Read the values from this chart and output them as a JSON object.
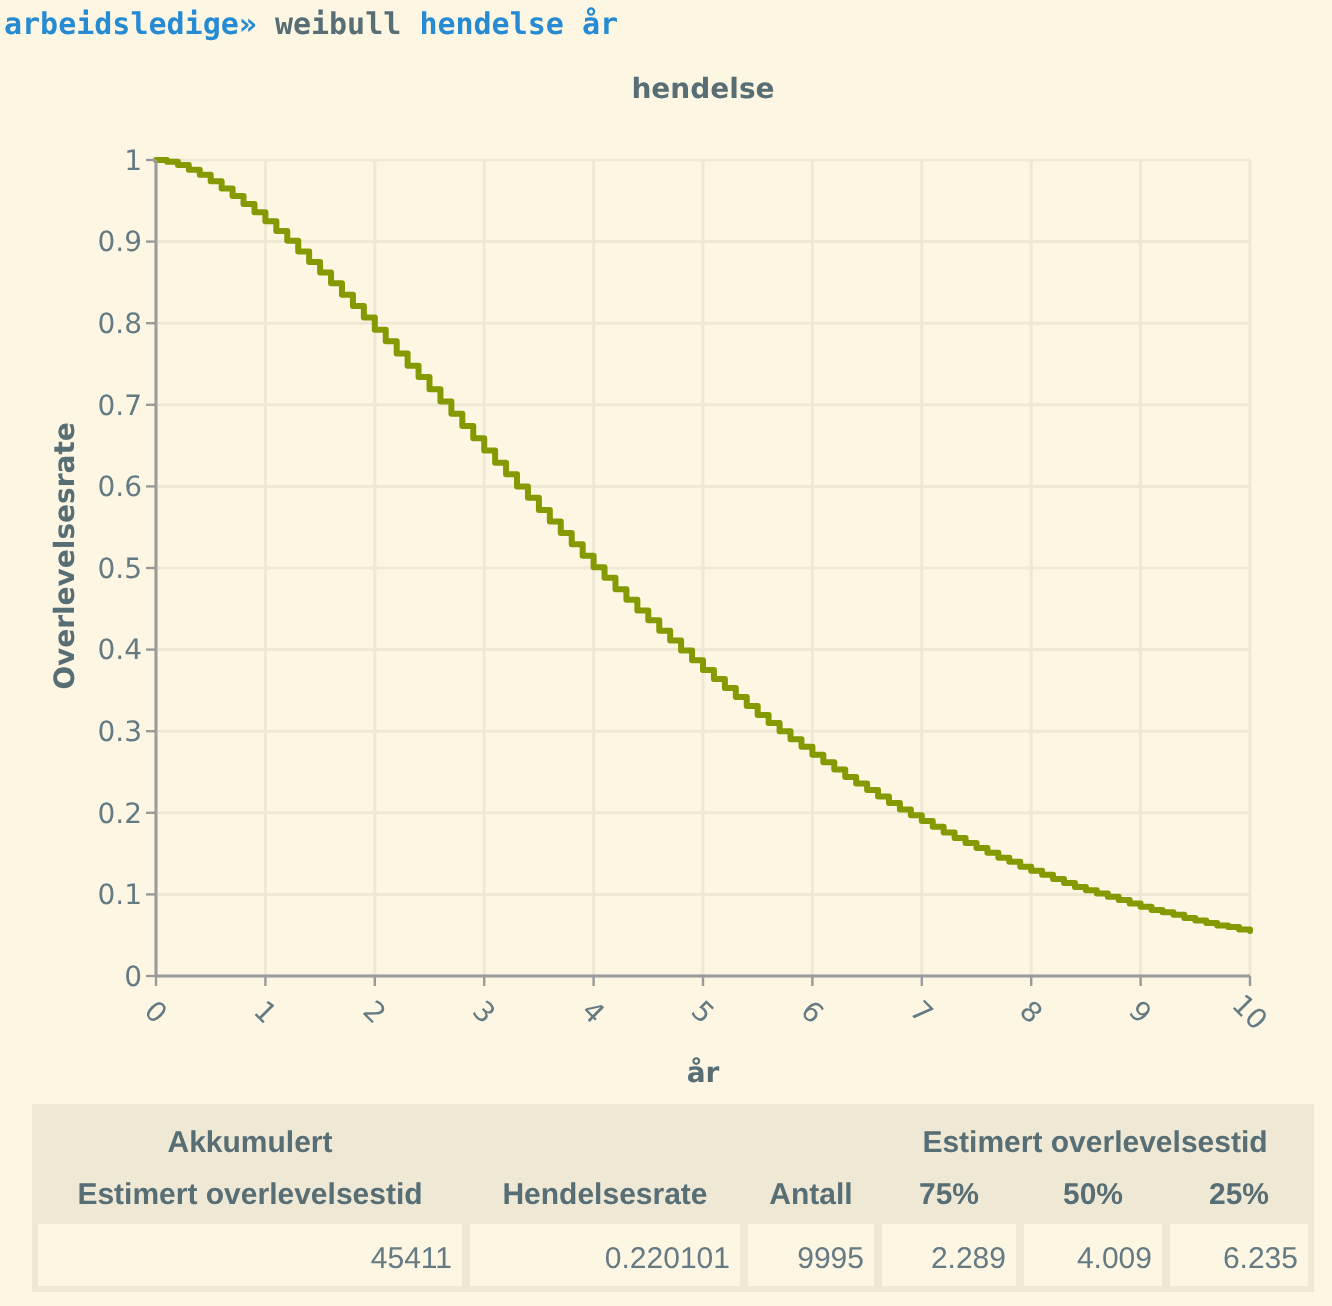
{
  "chart_data": [
    {
      "type": "step",
      "title": "hendelse",
      "xlabel": "år",
      "ylabel": "Overlevelsesrate",
      "annotations": [
        "arbeidsledige»",
        "weibull",
        "hendelse år"
      ],
      "x": [
        0,
        0.1,
        0.2,
        0.3,
        0.4,
        0.5,
        0.6,
        0.7,
        0.8,
        0.9,
        1,
        1.1,
        1.2,
        1.3,
        1.4,
        1.5,
        1.6,
        1.7,
        1.8,
        1.9,
        2,
        2.1,
        2.2,
        2.3,
        2.4,
        2.5,
        2.6,
        2.7,
        2.8,
        2.9,
        3,
        3.1,
        3.2,
        3.3,
        3.4,
        3.5,
        3.6,
        3.7,
        3.8,
        3.9,
        4,
        4.1,
        4.2,
        4.3,
        4.4,
        4.5,
        4.6,
        4.7,
        4.8,
        4.9,
        5,
        5.1,
        5.2,
        5.3,
        5.4,
        5.5,
        5.6,
        5.7,
        5.8,
        5.9,
        6,
        6.1,
        6.2,
        6.3,
        6.4,
        6.5,
        6.6,
        6.7,
        6.8,
        6.9,
        7,
        7.1,
        7.2,
        7.3,
        7.4,
        7.5,
        7.6,
        7.7,
        7.8,
        7.9,
        8,
        8.1,
        8.2,
        8.3,
        8.4,
        8.5,
        8.6,
        8.7,
        8.8,
        8.9,
        9,
        9.1,
        9.2,
        9.3,
        9.4,
        9.5,
        9.6,
        9.7,
        9.8,
        9.9,
        10
      ],
      "values": [
        1,
        0.998,
        0.994,
        0.988,
        0.982,
        0.974,
        0.965,
        0.956,
        0.946,
        0.936,
        0.925,
        0.913,
        0.901,
        0.888,
        0.875,
        0.862,
        0.849,
        0.835,
        0.821,
        0.807,
        0.792,
        0.778,
        0.763,
        0.748,
        0.734,
        0.719,
        0.704,
        0.689,
        0.674,
        0.659,
        0.644,
        0.629,
        0.615,
        0.6,
        0.586,
        0.571,
        0.557,
        0.543,
        0.529,
        0.515,
        0.501,
        0.488,
        0.474,
        0.461,
        0.448,
        0.436,
        0.423,
        0.411,
        0.399,
        0.387,
        0.375,
        0.364,
        0.353,
        0.342,
        0.331,
        0.32,
        0.31,
        0.3,
        0.29,
        0.281,
        0.271,
        0.262,
        0.253,
        0.244,
        0.236,
        0.228,
        0.22,
        0.212,
        0.204,
        0.197,
        0.19,
        0.183,
        0.176,
        0.169,
        0.163,
        0.157,
        0.151,
        0.145,
        0.14,
        0.134,
        0.129,
        0.124,
        0.119,
        0.114,
        0.109,
        0.105,
        0.101,
        0.097,
        0.093,
        0.089,
        0.085,
        0.081,
        0.078,
        0.075,
        0.071,
        0.068,
        0.065,
        0.062,
        0.06,
        0.057,
        0.055
      ],
      "color": "#859900",
      "xlim": [
        0,
        10
      ],
      "ylim": [
        0,
        1
      ],
      "xticks": [
        0,
        1,
        2,
        3,
        4,
        5,
        6,
        7,
        8,
        9,
        10
      ],
      "yticks": [
        0,
        0.1,
        0.2,
        0.3,
        0.4,
        0.5,
        0.6,
        0.7,
        0.8,
        0.9,
        1
      ],
      "grid": true
    },
    {
      "type": "other",
      "annotations": [
        "Akkumulert",
        "Estimert overlevelsestid"
      ],
      "categories": [
        "Estimert overlevelsestid",
        "Hendelsesrate",
        "Antall",
        "75%",
        "50%",
        "25%"
      ],
      "values": [
        45411,
        0.220101,
        9995,
        2.289,
        4.009,
        6.235
      ],
      "data_labels": true
    }
  ]
}
